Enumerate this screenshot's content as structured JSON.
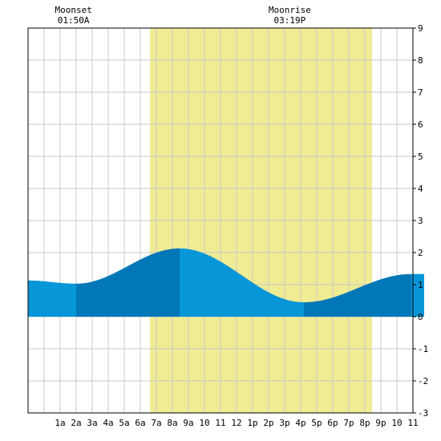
{
  "moon_events": [
    {
      "label": "Moonset",
      "time": "01:50A",
      "hour": 1.833
    },
    {
      "label": "Moonrise",
      "time": "03:19P",
      "hour": 15.317
    }
  ],
  "chart_data": {
    "type": "area",
    "title": "",
    "xlabel": "",
    "ylabel": "",
    "xlim": [
      -1,
      23
    ],
    "ylim": [
      -3,
      9
    ],
    "grid": true,
    "x_tick_labels": [
      {
        "hour": 1,
        "label": "1a"
      },
      {
        "hour": 2,
        "label": "2a"
      },
      {
        "hour": 3,
        "label": "3a"
      },
      {
        "hour": 4,
        "label": "4a"
      },
      {
        "hour": 5,
        "label": "5a"
      },
      {
        "hour": 6,
        "label": "6a"
      },
      {
        "hour": 7,
        "label": "7a"
      },
      {
        "hour": 8,
        "label": "8a"
      },
      {
        "hour": 9,
        "label": "9a"
      },
      {
        "hour": 10,
        "label": "10"
      },
      {
        "hour": 11,
        "label": "11"
      },
      {
        "hour": 12,
        "label": "12"
      },
      {
        "hour": 13,
        "label": "1p"
      },
      {
        "hour": 14,
        "label": "2p"
      },
      {
        "hour": 15,
        "label": "3p"
      },
      {
        "hour": 16,
        "label": "4p"
      },
      {
        "hour": 17,
        "label": "5p"
      },
      {
        "hour": 18,
        "label": "6p"
      },
      {
        "hour": 19,
        "label": "7p"
      },
      {
        "hour": 20,
        "label": "8p"
      },
      {
        "hour": 21,
        "label": "9p"
      },
      {
        "hour": 22,
        "label": "10"
      },
      {
        "hour": 23,
        "label": "11"
      }
    ],
    "y_ticks": [
      -3,
      -2,
      -1,
      0,
      1,
      2,
      3,
      4,
      5,
      6,
      7,
      8,
      9
    ],
    "daylight": {
      "start_hour": 6.6,
      "end_hour": 20.45,
      "color": "#f0ec94"
    },
    "tide_extremes": [
      {
        "hour": 2.0,
        "height": 1.03,
        "type": "low"
      },
      {
        "hour": 8.45,
        "height": 2.13,
        "type": "high"
      },
      {
        "hour": 16.2,
        "height": 0.45,
        "type": "low"
      },
      {
        "hour": 22.9,
        "height": 1.33,
        "type": "high"
      }
    ],
    "tide_start": {
      "hour": -1,
      "height": 1.13
    },
    "tide_end": {
      "hour": 23.7,
      "height": 1.33
    },
    "colors": {
      "tide_light": "#0796d8",
      "tide_dark": "#0277b8",
      "grid": "#c8c8c8",
      "frame": "#000000"
    }
  }
}
